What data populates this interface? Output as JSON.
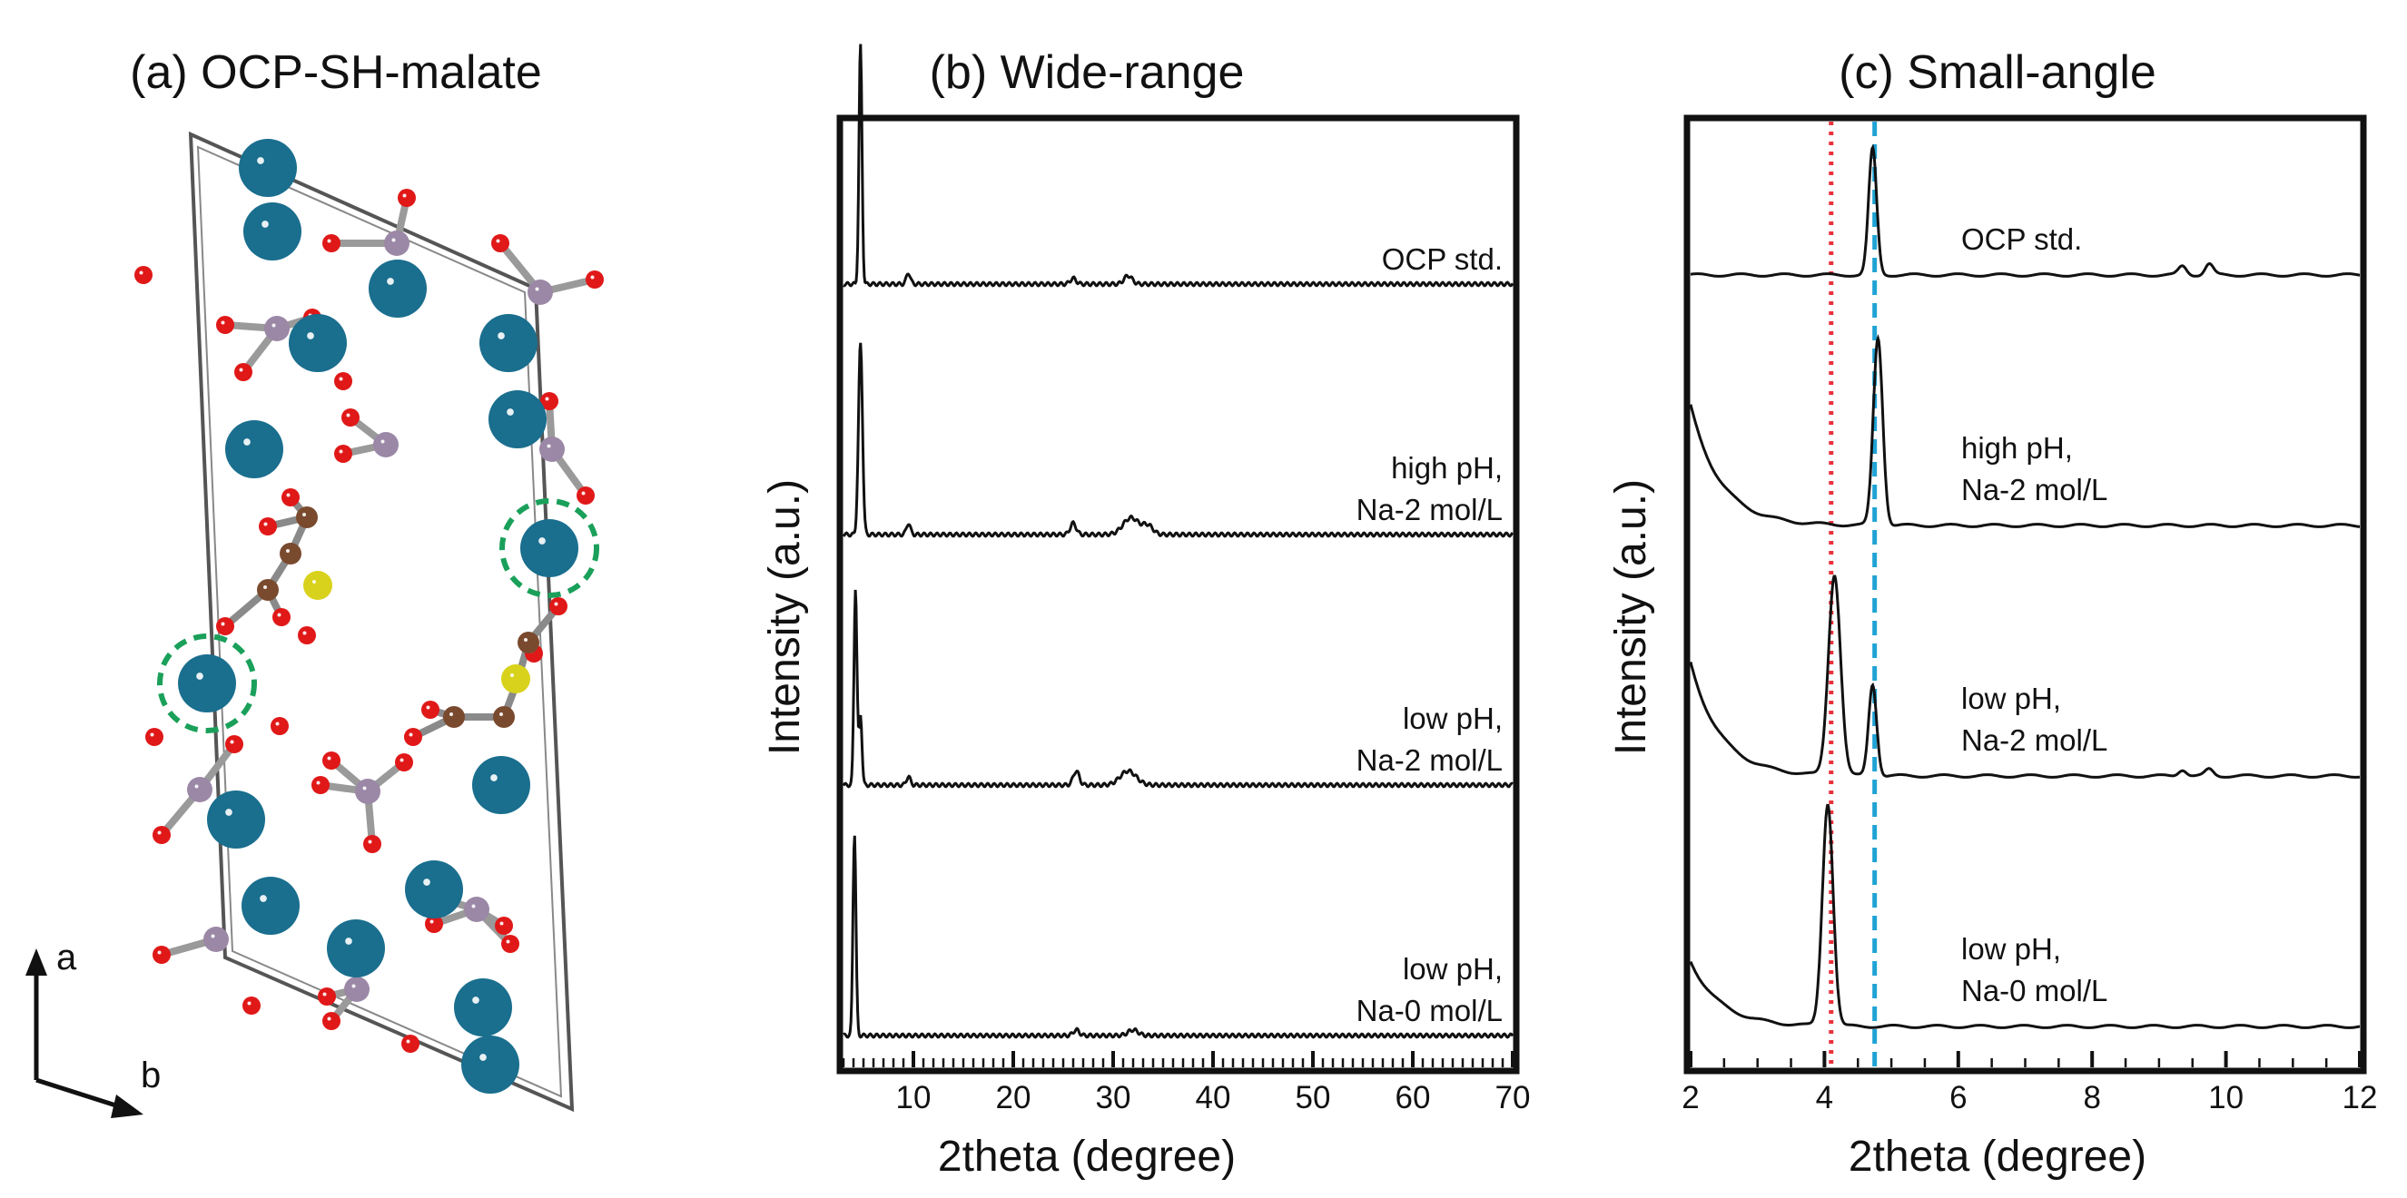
{
  "panel_a": {
    "title": "(a) OCP-SH-malate",
    "axis_a": "a",
    "axis_b": "b",
    "colors": {
      "ca": "#1a6e8e",
      "p": "#9b87a6",
      "o": "#e01818",
      "c": "#7a4a2e",
      "s": "#d9d21c",
      "dashed_circle": "#1aa05a"
    }
  },
  "chart_data": [
    {
      "type": "line",
      "title": "(b) Wide-range",
      "xlabel": "2theta (degree)",
      "ylabel": "Intensity (a.u.)",
      "xlim": [
        3,
        70
      ],
      "xticks": [
        10,
        20,
        30,
        40,
        50,
        60,
        70
      ],
      "series": [
        {
          "name": "OCP std.",
          "label_lines": [
            "OCP std."
          ],
          "offset": 3,
          "peaks": [
            [
              4.7,
              0.85,
              0.15
            ],
            [
              9.5,
              0.04,
              0.2
            ],
            [
              26,
              0.02,
              0.3
            ],
            [
              31.5,
              0.03,
              0.4
            ]
          ]
        },
        {
          "name": "high pH, Na-2 mol/L",
          "label_lines": [
            "high pH,",
            "Na-2 mol/L"
          ],
          "offset": 2,
          "peaks": [
            [
              4.7,
              0.68,
              0.2
            ],
            [
              9.5,
              0.04,
              0.2
            ],
            [
              26,
              0.04,
              0.3
            ],
            [
              31.8,
              0.06,
              0.8
            ],
            [
              33.5,
              0.03,
              0.5
            ]
          ]
        },
        {
          "name": "low pH, Na-2 mol/L",
          "label_lines": [
            "low pH,",
            "Na-2 mol/L"
          ],
          "offset": 1,
          "peaks": [
            [
              4.2,
              0.7,
              0.15
            ],
            [
              4.7,
              0.25,
              0.15
            ],
            [
              9.5,
              0.03,
              0.2
            ],
            [
              26.3,
              0.05,
              0.3
            ],
            [
              31.5,
              0.05,
              0.8
            ]
          ]
        },
        {
          "name": "low pH, Na-0 mol/L",
          "label_lines": [
            "low pH,",
            "Na-0 mol/L"
          ],
          "offset": 0,
          "peaks": [
            [
              4.1,
              0.72,
              0.15
            ],
            [
              26.3,
              0.02,
              0.3
            ],
            [
              32,
              0.02,
              0.5
            ]
          ]
        }
      ]
    },
    {
      "type": "line",
      "title": "(c) Small-angle",
      "xlabel": "2theta (degree)",
      "ylabel": "Intensity (a.u.)",
      "xlim": [
        2,
        12
      ],
      "xticks": [
        2,
        4,
        6,
        8,
        10,
        12
      ],
      "reference_lines": [
        {
          "x": 4.1,
          "color": "#e8323c",
          "style": "dotted"
        },
        {
          "x": 4.75,
          "color": "#1fa3d4",
          "style": "dashed"
        }
      ],
      "series": [
        {
          "name": "OCP std.",
          "label_lines": [
            "OCP std."
          ],
          "offset": 3,
          "peaks": [
            [
              4.72,
              0.58,
              0.06
            ],
            [
              9.35,
              0.04,
              0.06
            ],
            [
              9.75,
              0.05,
              0.06
            ]
          ],
          "background": 0
        },
        {
          "name": "high pH, Na-2 mol/L",
          "label_lines": [
            "high pH,",
            "Na-2 mol/L"
          ],
          "offset": 2,
          "peaks": [
            [
              4.8,
              0.86,
              0.07
            ]
          ],
          "background": 0.55
        },
        {
          "name": "low pH, Na-2 mol/L",
          "label_lines": [
            "low pH,",
            "Na-2 mol/L"
          ],
          "offset": 1,
          "peaks": [
            [
              4.15,
              0.92,
              0.09
            ],
            [
              4.72,
              0.42,
              0.06
            ],
            [
              9.35,
              0.03,
              0.06
            ],
            [
              9.75,
              0.03,
              0.06
            ]
          ],
          "background": 0.52
        },
        {
          "name": "low pH, Na-0 mol/L",
          "label_lines": [
            "low pH,",
            "Na-0 mol/L"
          ],
          "offset": 0,
          "peaks": [
            [
              4.05,
              1.02,
              0.08
            ]
          ],
          "background": 0.3
        }
      ]
    }
  ]
}
